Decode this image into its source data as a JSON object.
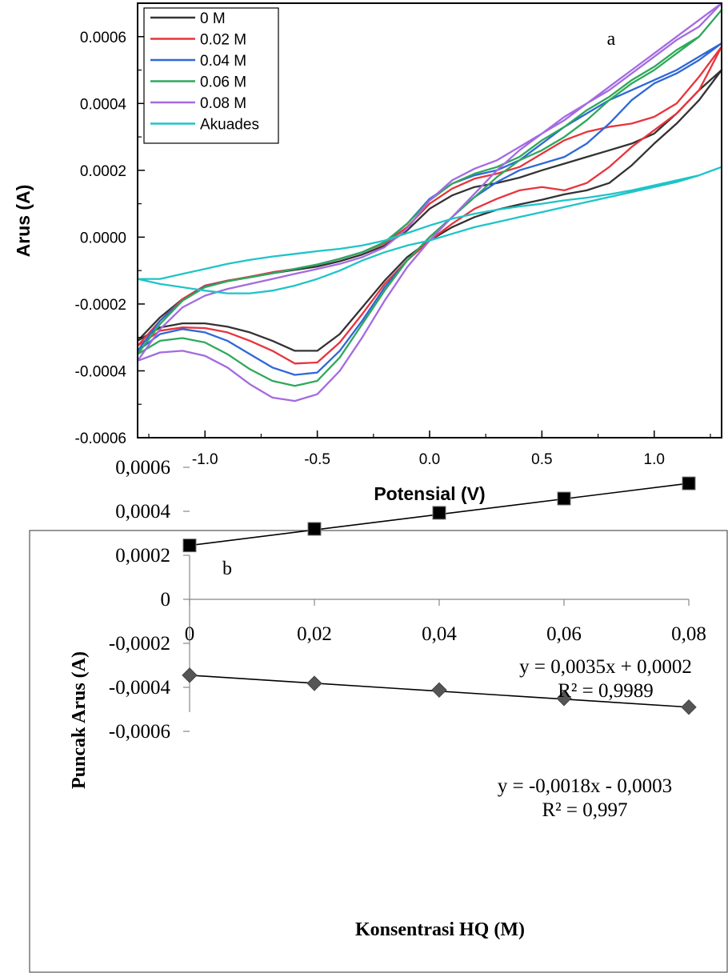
{
  "chart_data": [
    {
      "type": "line",
      "panel_label": "a",
      "xlabel": "Potensial (V)",
      "ylabel": "Arus (A)",
      "xlim": [
        -1.3,
        1.3
      ],
      "ylim": [
        -0.0006,
        0.0007
      ],
      "x_ticks": [
        -1.0,
        -0.5,
        0.0,
        0.5,
        1.0
      ],
      "x_tick_labels": [
        "-1.0",
        "-0.5",
        "0.0",
        "0.5",
        "1.0"
      ],
      "y_ticks": [
        -0.0006,
        -0.0004,
        -0.0002,
        0.0,
        0.0002,
        0.0004,
        0.0006
      ],
      "y_tick_labels": [
        "-0.0006",
        "-0.0004",
        "-0.0002",
        "0.0000",
        "0.0002",
        "0.0004",
        "0.0006"
      ],
      "grid": false,
      "legend_position": "top-left",
      "series": [
        {
          "name": "0 M",
          "color": "#333333",
          "x": [
            -1.3,
            -1.2,
            -1.1,
            -1.0,
            -0.9,
            -0.8,
            -0.7,
            -0.6,
            -0.5,
            -0.4,
            -0.3,
            -0.2,
            -0.1,
            0.0,
            0.1,
            0.2,
            0.3,
            0.4,
            0.5,
            0.6,
            0.7,
            0.8,
            0.9,
            1.0,
            1.1,
            1.2,
            1.3,
            1.2,
            1.1,
            1.0,
            0.9,
            0.8,
            0.7,
            0.6,
            0.5,
            0.4,
            0.3,
            0.2,
            0.1,
            0.0,
            -0.1,
            -0.2,
            -0.3,
            -0.4,
            -0.5,
            -0.6,
            -0.7,
            -0.8,
            -0.9,
            -1.0,
            -1.1,
            -1.2,
            -1.3
          ],
          "y": [
            -0.00031,
            -0.00027,
            -0.000258,
            -0.000258,
            -0.000268,
            -0.000285,
            -0.00031,
            -0.00034,
            -0.00034,
            -0.00029,
            -0.00021,
            -0.00013,
            -6e-05,
            -1e-05,
            3e-05,
            6e-05,
            8.2e-05,
            9.8e-05,
            0.000112,
            0.000128,
            0.00014,
            0.000162,
            0.000215,
            0.00028,
            0.00034,
            0.00041,
            0.0005,
            0.00044,
            0.00037,
            0.00031,
            0.00028,
            0.00026,
            0.00024,
            0.00022,
            0.0002,
            0.000178,
            0.000162,
            0.00015,
            0.000125,
            8.5e-05,
            2e-05,
            -2.5e-05,
            -5.2e-05,
            -7.2e-05,
            -8.8e-05,
            -9.8e-05,
            -0.000108,
            -0.00012,
            -0.00013,
            -0.000145,
            -0.000185,
            -0.00024,
            -0.00031
          ]
        },
        {
          "name": "0.02 M",
          "color": "#e8343c",
          "x": [
            -1.3,
            -1.2,
            -1.1,
            -1.0,
            -0.9,
            -0.8,
            -0.7,
            -0.6,
            -0.5,
            -0.4,
            -0.3,
            -0.2,
            -0.1,
            0.0,
            0.1,
            0.2,
            0.3,
            0.4,
            0.5,
            0.6,
            0.7,
            0.8,
            0.9,
            1.0,
            1.1,
            1.2,
            1.3,
            1.2,
            1.1,
            1.0,
            0.9,
            0.8,
            0.7,
            0.6,
            0.5,
            0.4,
            0.3,
            0.2,
            0.1,
            0.0,
            -0.1,
            -0.2,
            -0.3,
            -0.4,
            -0.5,
            -0.6,
            -0.7,
            -0.8,
            -0.9,
            -1.0,
            -1.1,
            -1.2,
            -1.3
          ],
          "y": [
            -0.000325,
            -0.00028,
            -0.00027,
            -0.000272,
            -0.000285,
            -0.00031,
            -0.00034,
            -0.000378,
            -0.000375,
            -0.000315,
            -0.00023,
            -0.00014,
            -7e-05,
            -1e-05,
            4e-05,
            8.5e-05,
            0.000115,
            0.00014,
            0.00015,
            0.00014,
            0.000162,
            0.00021,
            0.00027,
            0.00032,
            0.00037,
            0.00044,
            0.00057,
            0.00048,
            0.0004,
            0.00036,
            0.00034,
            0.00033,
            0.000315,
            0.00029,
            0.00025,
            0.00021,
            0.00019,
            0.000175,
            0.000145,
            0.0001,
            3e-05,
            -1.8e-05,
            -4.5e-05,
            -6.5e-05,
            -8.2e-05,
            -9.5e-05,
            -0.000105,
            -0.000118,
            -0.00013,
            -0.000145,
            -0.000185,
            -0.00025,
            -0.000325
          ]
        },
        {
          "name": "0.04 M",
          "color": "#2f68d8",
          "x": [
            -1.3,
            -1.2,
            -1.1,
            -1.0,
            -0.9,
            -0.8,
            -0.7,
            -0.6,
            -0.5,
            -0.4,
            -0.3,
            -0.2,
            -0.1,
            0.0,
            0.1,
            0.2,
            0.3,
            0.4,
            0.5,
            0.6,
            0.7,
            0.8,
            0.9,
            1.0,
            1.1,
            1.2,
            1.3,
            1.2,
            1.1,
            1.0,
            0.9,
            0.8,
            0.7,
            0.6,
            0.5,
            0.4,
            0.3,
            0.2,
            0.1,
            0.0,
            -0.1,
            -0.2,
            -0.3,
            -0.4,
            -0.5,
            -0.6,
            -0.7,
            -0.8,
            -0.9,
            -1.0,
            -1.1,
            -1.2,
            -1.3
          ],
          "y": [
            -0.00034,
            -0.00029,
            -0.000275,
            -0.000285,
            -0.00031,
            -0.00035,
            -0.00039,
            -0.000412,
            -0.000405,
            -0.00034,
            -0.00025,
            -0.00015,
            -7e-05,
            0.0,
            6e-05,
            0.00012,
            0.000165,
            0.0002,
            0.00022,
            0.00024,
            0.00028,
            0.00034,
            0.00041,
            0.00046,
            0.00049,
            0.00053,
            0.00058,
            0.00054,
            0.0005,
            0.00047,
            0.00044,
            0.00041,
            0.00037,
            0.00033,
            0.00028,
            0.00023,
            0.0002,
            0.000185,
            0.00016,
            0.000115,
            4e-05,
            -1.5e-05,
            -4.5e-05,
            -6.5e-05,
            -8.2e-05,
            -9.5e-05,
            -0.000108,
            -0.00012,
            -0.000132,
            -0.000148,
            -0.00019,
            -0.00025,
            -0.00034
          ]
        },
        {
          "name": "0.06 M",
          "color": "#2ea85a",
          "x": [
            -1.3,
            -1.2,
            -1.1,
            -1.0,
            -0.9,
            -0.8,
            -0.7,
            -0.6,
            -0.5,
            -0.4,
            -0.3,
            -0.2,
            -0.1,
            0.0,
            0.1,
            0.2,
            0.3,
            0.4,
            0.5,
            0.6,
            0.7,
            0.8,
            0.9,
            1.0,
            1.1,
            1.2,
            1.3,
            1.2,
            1.1,
            1.0,
            0.9,
            0.8,
            0.7,
            0.6,
            0.5,
            0.4,
            0.3,
            0.2,
            0.1,
            0.0,
            -0.1,
            -0.2,
            -0.3,
            -0.4,
            -0.5,
            -0.6,
            -0.7,
            -0.8,
            -0.9,
            -1.0,
            -1.1,
            -1.2,
            -1.3
          ],
          "y": [
            -0.00035,
            -0.00031,
            -0.000302,
            -0.000315,
            -0.00035,
            -0.000395,
            -0.00043,
            -0.000445,
            -0.00043,
            -0.00036,
            -0.00026,
            -0.00016,
            -7e-05,
            0.0,
            6e-05,
            0.00012,
            0.00018,
            0.00023,
            0.00026,
            0.0003,
            0.00035,
            0.00041,
            0.00046,
            0.0005,
            0.00055,
            0.0006,
            0.00068,
            0.0006,
            0.00056,
            0.00051,
            0.00047,
            0.00042,
            0.00038,
            0.00033,
            0.00029,
            0.00024,
            0.00021,
            0.00019,
            0.00016,
            0.00011,
            4e-05,
            -1.5e-05,
            -4.5e-05,
            -6.5e-05,
            -8.2e-05,
            -9.5e-05,
            -0.000108,
            -0.00012,
            -0.000132,
            -0.00015,
            -0.00019,
            -0.00026,
            -0.00035
          ]
        },
        {
          "name": "0.08 M",
          "color": "#a46be0",
          "x": [
            -1.3,
            -1.2,
            -1.1,
            -1.0,
            -0.9,
            -0.8,
            -0.7,
            -0.6,
            -0.5,
            -0.4,
            -0.3,
            -0.2,
            -0.1,
            0.0,
            0.1,
            0.2,
            0.3,
            0.4,
            0.5,
            0.6,
            0.7,
            0.8,
            0.9,
            1.0,
            1.1,
            1.2,
            1.3,
            1.2,
            1.1,
            1.0,
            0.9,
            0.8,
            0.7,
            0.6,
            0.5,
            0.4,
            0.3,
            0.2,
            0.1,
            0.0,
            -0.1,
            -0.2,
            -0.3,
            -0.4,
            -0.5,
            -0.6,
            -0.7,
            -0.8,
            -0.9,
            -1.0,
            -1.1,
            -1.2,
            -1.3
          ],
          "y": [
            -0.00037,
            -0.000345,
            -0.00034,
            -0.000355,
            -0.00039,
            -0.00044,
            -0.00048,
            -0.00049,
            -0.00047,
            -0.0004,
            -0.0003,
            -0.00019,
            -9e-05,
            -1e-05,
            6e-05,
            0.00013,
            0.0002,
            0.00026,
            0.00031,
            0.00036,
            0.0004,
            0.00044,
            0.00049,
            0.00054,
            0.00059,
            0.00063,
            0.0007,
            0.00065,
            0.0006,
            0.00055,
            0.0005,
            0.00045,
            0.0004,
            0.00035,
            0.00031,
            0.00027,
            0.00023,
            0.000205,
            0.00017,
            0.00011,
            2.5e-05,
            -3e-05,
            -6e-05,
            -8e-05,
            -9.5e-05,
            -0.00011,
            -0.000125,
            -0.00014,
            -0.000155,
            -0.000175,
            -0.00021,
            -0.000275,
            -0.00037
          ]
        },
        {
          "name": "Akuades",
          "color": "#1fc4c8",
          "x": [
            -1.3,
            -1.2,
            -1.1,
            -1.0,
            -0.9,
            -0.8,
            -0.7,
            -0.6,
            -0.5,
            -0.4,
            -0.3,
            -0.2,
            -0.1,
            0.0,
            0.1,
            0.2,
            0.3,
            0.4,
            0.5,
            0.6,
            0.7,
            0.8,
            0.9,
            1.0,
            1.1,
            1.2,
            1.3,
            1.2,
            1.1,
            1.0,
            0.9,
            0.8,
            0.7,
            0.6,
            0.5,
            0.4,
            0.3,
            0.2,
            0.1,
            0.0,
            -0.1,
            -0.2,
            -0.3,
            -0.4,
            -0.5,
            -0.6,
            -0.7,
            -0.8,
            -0.9,
            -1.0,
            -1.1,
            -1.2,
            -1.3
          ],
          "y": [
            -0.000125,
            -0.00014,
            -0.00015,
            -0.00016,
            -0.000168,
            -0.000168,
            -0.00016,
            -0.000145,
            -0.000125,
            -0.0001,
            -7e-05,
            -4.5e-05,
            -2.5e-05,
            -1e-05,
            1e-05,
            3e-05,
            4.5e-05,
            6e-05,
            7.5e-05,
            9e-05,
            0.000105,
            0.00012,
            0.000135,
            0.00015,
            0.000165,
            0.000185,
            0.00021,
            0.000185,
            0.00017,
            0.000155,
            0.00014,
            0.000128,
            0.000118,
            0.00011,
            0.0001,
            9.2e-05,
            8.2e-05,
            7e-05,
            5.5e-05,
            3.5e-05,
            1.2e-05,
            -1e-05,
            -2.5e-05,
            -3.5e-05,
            -4.2e-05,
            -5e-05,
            -5.8e-05,
            -6.8e-05,
            -8e-05,
            -9.5e-05,
            -0.00011,
            -0.000125,
            -0.000125
          ]
        }
      ]
    },
    {
      "type": "scatter",
      "panel_label": "b",
      "xlabel": "Konsentrasi HQ (M)",
      "ylabel": "Puncak Arus (A)",
      "xlim": [
        0,
        0.08
      ],
      "ylim": [
        -0.0006,
        0.0006
      ],
      "x_ticks": [
        0,
        0.02,
        0.04,
        0.06,
        0.08
      ],
      "x_tick_labels": [
        "0",
        "0,02",
        "0,04",
        "0,06",
        "0,08"
      ],
      "y_ticks": [
        -0.0006,
        -0.0004,
        -0.0002,
        0,
        0.0002,
        0.0004,
        0.0006
      ],
      "y_tick_labels": [
        "-0,0006",
        "-0,0004",
        "-0,0002",
        "0",
        "0,0002",
        "0,0004",
        "0,0006"
      ],
      "grid": false,
      "series": [
        {
          "marker": "square",
          "color": "#000000",
          "x": [
            0,
            0.02,
            0.04,
            0.06,
            0.08
          ],
          "y": [
            0.000245,
            0.00032,
            0.000393,
            0.000458,
            0.000527
          ],
          "trendline": {
            "slope": 0.0035,
            "intercept": 0.0002,
            "fit_start": 0.000245,
            "fit_end": 0.000527
          },
          "equation": "y = 0,0035x + 0,0002",
          "r_squared": "R² = 0,9989"
        },
        {
          "marker": "diamond",
          "color": "#555555",
          "x": [
            0,
            0.02,
            0.04,
            0.06,
            0.08
          ],
          "y": [
            -0.000345,
            -0.000382,
            -0.000412,
            -0.00045,
            -0.00049
          ],
          "trendline": {
            "slope": -0.0018,
            "intercept": -0.0003,
            "fit_start": -0.000345,
            "fit_end": -0.00049
          },
          "equation": "y = -0,0018x - 0,0003",
          "r_squared": "R² = 0,997"
        }
      ]
    }
  ]
}
